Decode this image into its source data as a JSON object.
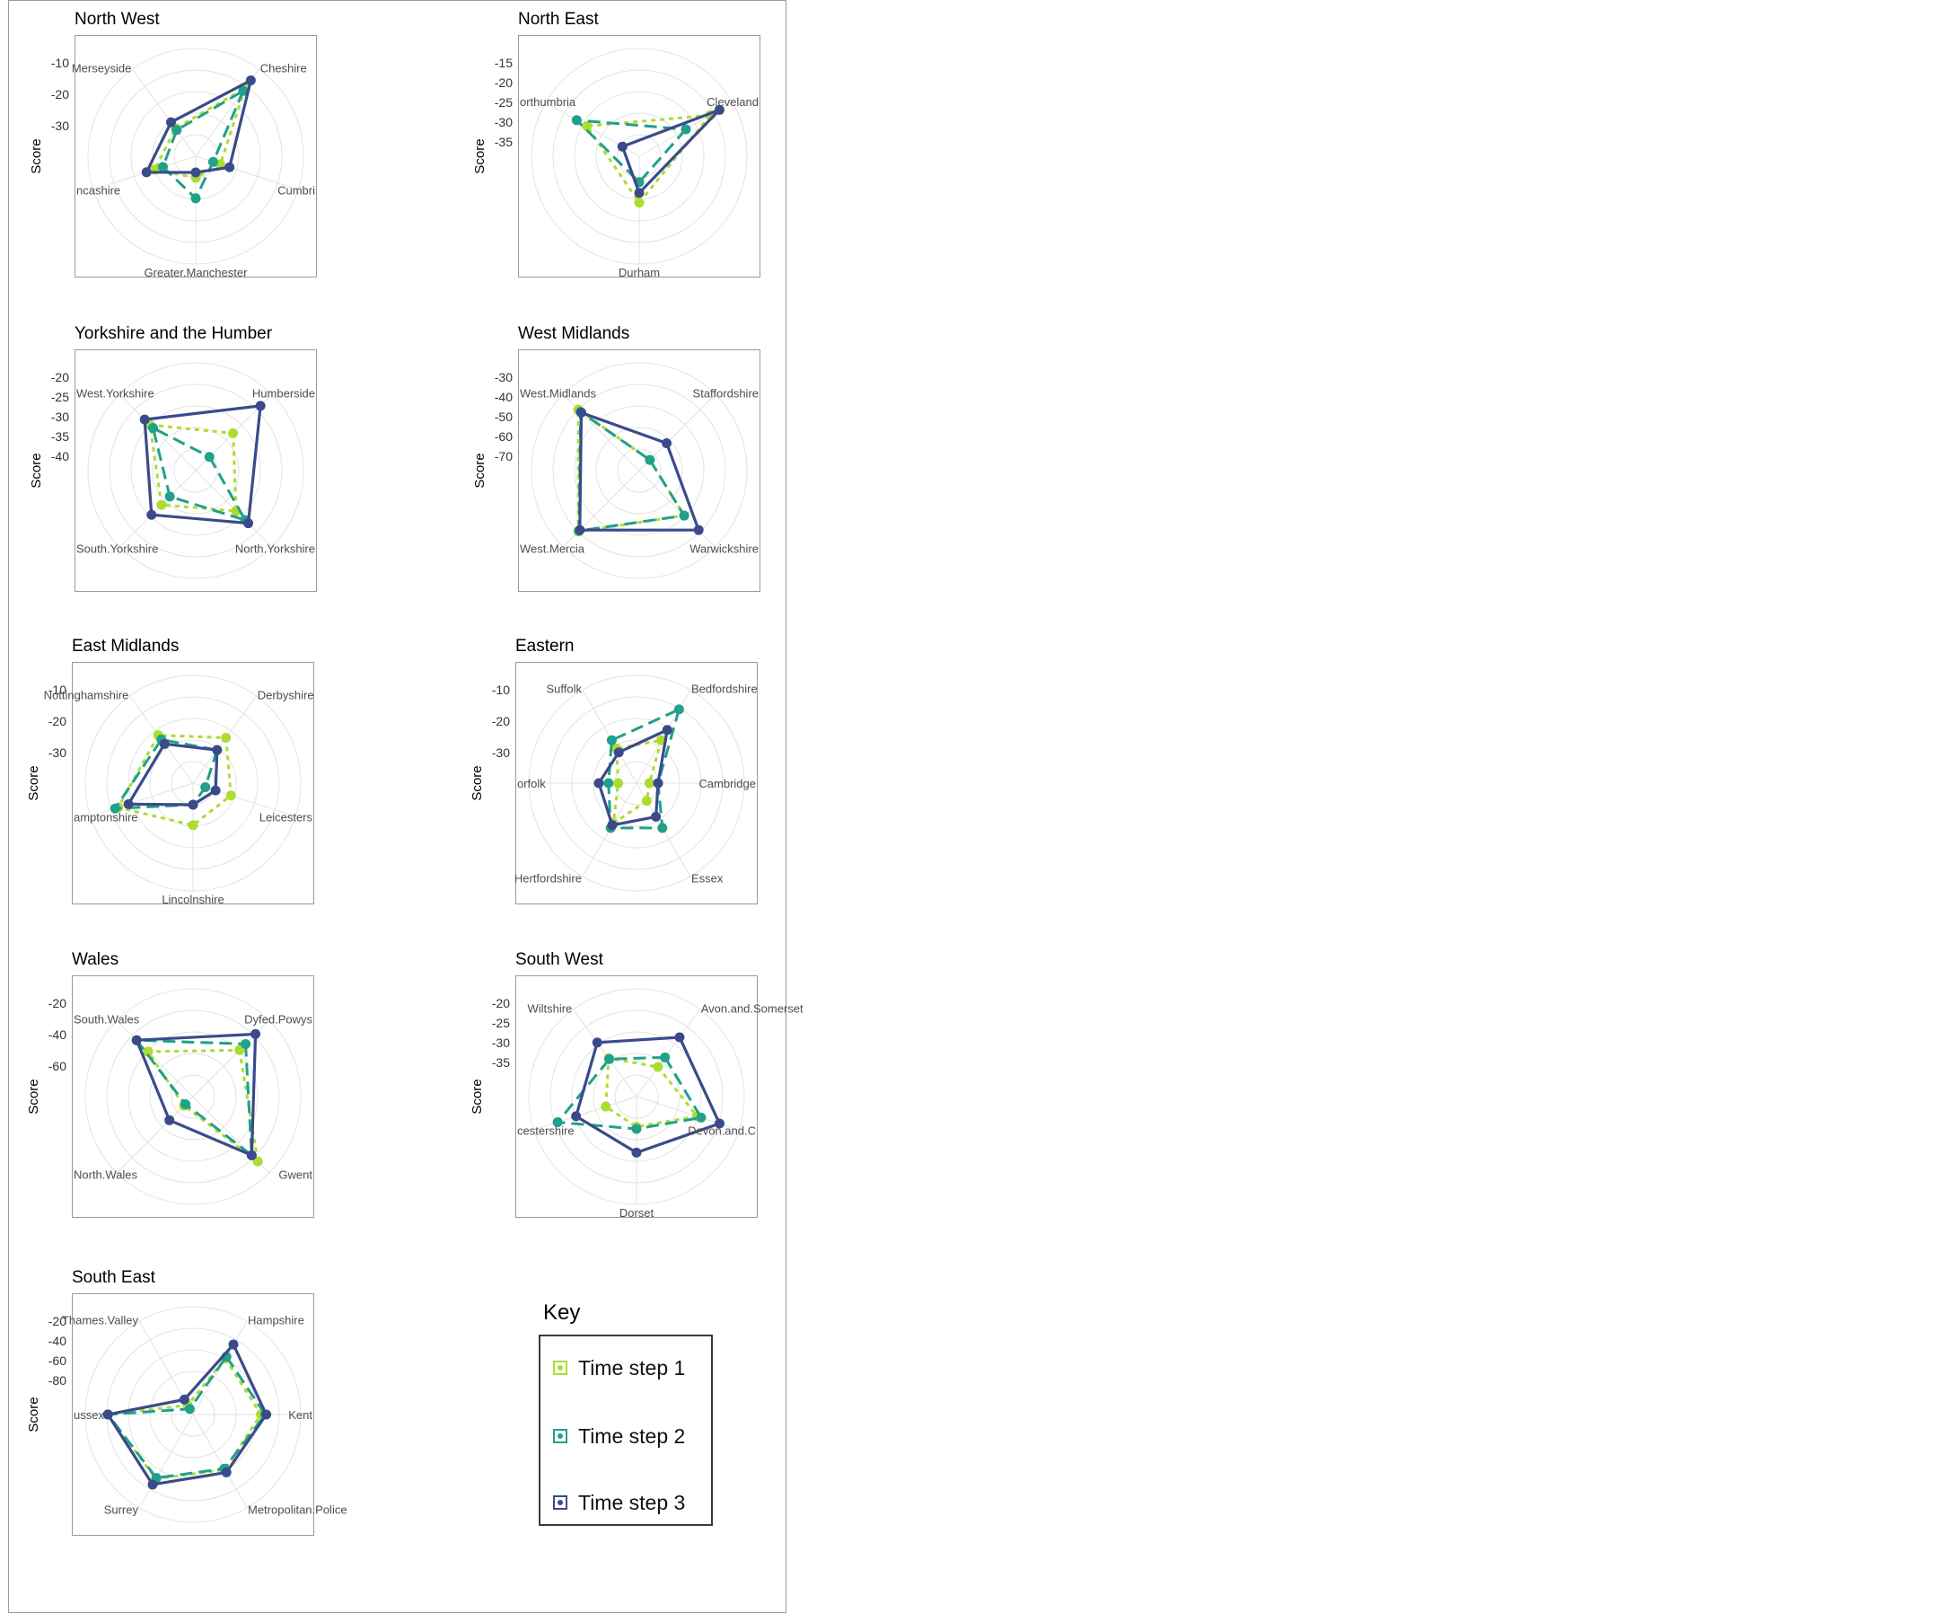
{
  "legend": {
    "title": "Key",
    "items": [
      {
        "label": "Time step 1",
        "color": "#addc30"
      },
      {
        "label": "Time step 2",
        "color": "#21a08a"
      },
      {
        "label": "Time step 3",
        "color": "#3b4a8a"
      }
    ]
  },
  "chart_data": [
    {
      "type": "radar",
      "title": "North West",
      "ylabel": "Score",
      "ticks": [
        "-10",
        "-20",
        "-30"
      ],
      "axes": [
        "Cheshire",
        "Cumbri",
        "Greater.Manchester",
        "ncashire",
        "Merseyside"
      ],
      "series": [
        {
          "values": [
            0.78,
            0.24,
            0.2,
            0.4,
            0.32
          ]
        },
        {
          "values": [
            0.75,
            0.17,
            0.39,
            0.32,
            0.3
          ]
        },
        {
          "values": [
            0.87,
            0.33,
            0.15,
            0.48,
            0.39
          ]
        }
      ]
    },
    {
      "type": "radar",
      "title": "North East",
      "ylabel": "Score",
      "ticks": [
        "-15",
        "-20",
        "-25",
        "-30",
        "-35"
      ],
      "axes": [
        "Cleveland",
        "Durham",
        "orthumbria"
      ],
      "series": [
        {
          "values": [
            0.76,
            0.43,
            0.56
          ]
        },
        {
          "values": [
            0.5,
            0.24,
            0.67
          ]
        },
        {
          "values": [
            0.86,
            0.34,
            0.18
          ]
        }
      ]
    },
    {
      "type": "radar",
      "title": "Yorkshire and the Humber",
      "ylabel": "Score",
      "ticks": [
        "-20",
        "-25",
        "-30",
        "-35",
        "-40"
      ],
      "axes": [
        "Humberside",
        "North.Yorkshire",
        "South.Yorkshire",
        "West.Yorkshire"
      ],
      "series": [
        {
          "values": [
            0.49,
            0.53,
            0.45,
            0.6
          ]
        },
        {
          "values": [
            0.18,
            0.65,
            0.34,
            0.56
          ]
        },
        {
          "values": [
            0.85,
            0.69,
            0.58,
            0.67
          ]
        }
      ]
    },
    {
      "type": "radar",
      "title": "West Midlands",
      "ylabel": "Score",
      "ticks": [
        "-30",
        "-40",
        "-50",
        "-60",
        "-70"
      ],
      "axes": [
        "Staffordshire",
        "Warwickshire",
        "West.Mercia",
        "West.Midlands"
      ],
      "series": [
        {
          "values": [
            0.14,
            0.59,
            0.8,
            0.8
          ]
        },
        {
          "values": [
            0.14,
            0.59,
            0.79,
            0.77
          ]
        },
        {
          "values": [
            0.36,
            0.78,
            0.78,
            0.76
          ]
        }
      ]
    },
    {
      "type": "radar",
      "title": "East Midlands",
      "ylabel": "Score",
      "ticks": [
        "-10",
        "-20",
        "-30"
      ],
      "axes": [
        "Derbyshire",
        "Leicesters",
        "Lincolnshire",
        "amptonshire",
        "Nottinghamshire"
      ],
      "series": [
        {
          "values": [
            0.52,
            0.37,
            0.39,
            0.73,
            0.55
          ]
        },
        {
          "values": [
            0.38,
            0.12,
            0.2,
            0.76,
            0.5
          ]
        },
        {
          "values": [
            0.38,
            0.22,
            0.2,
            0.63,
            0.45
          ]
        }
      ]
    },
    {
      "type": "radar",
      "title": "Eastern",
      "ylabel": "Score",
      "ticks": [
        "-10",
        "-20",
        "-30"
      ],
      "axes": [
        "Bedfordshire",
        "Cambridge",
        "Essex",
        "Hertfordshire",
        "orfolk",
        "Suffolk"
      ],
      "series": [
        {
          "values": [
            0.46,
            0.12,
            0.19,
            0.43,
            0.17,
            0.37
          ]
        },
        {
          "values": [
            0.79,
            0.2,
            0.48,
            0.48,
            0.26,
            0.46
          ]
        },
        {
          "values": [
            0.57,
            0.2,
            0.36,
            0.45,
            0.35,
            0.33
          ]
        }
      ]
    },
    {
      "type": "radar",
      "title": "Wales",
      "ylabel": "Score",
      "ticks": [
        "-20",
        "-40",
        "-60"
      ],
      "axes": [
        "Dyfed.Powys",
        "Gwent",
        "North.Wales",
        "South.Wales"
      ],
      "series": [
        {
          "values": [
            0.61,
            0.85,
            0.12,
            0.59
          ]
        },
        {
          "values": [
            0.69,
            0.77,
            0.1,
            0.74
          ]
        },
        {
          "values": [
            0.82,
            0.77,
            0.31,
            0.74
          ]
        }
      ]
    },
    {
      "type": "radar",
      "title": "South West",
      "ylabel": "Score",
      "ticks": [
        "-20",
        "-25",
        "-30",
        "-35"
      ],
      "axes": [
        "Avon.and.Somerset",
        "Devon.and.C",
        "Dorset",
        "cestershire",
        "Wiltshire"
      ],
      "series": [
        {
          "values": [
            0.34,
            0.59,
            0.28,
            0.3,
            0.44
          ]
        },
        {
          "values": [
            0.45,
            0.63,
            0.3,
            0.77,
            0.43
          ]
        },
        {
          "values": [
            0.68,
            0.81,
            0.52,
            0.59,
            0.62
          ]
        }
      ]
    },
    {
      "type": "radar",
      "title": "South East",
      "ylabel": "Score",
      "ticks": [
        "-20",
        "-40",
        "-60",
        "-80"
      ],
      "axes": [
        "Hampshire",
        "Kent",
        "Metropolitan.Police",
        "Surrey",
        "ussex",
        "Thames.Valley"
      ],
      "series": [
        {
          "values": [
            0.6,
            0.63,
            0.59,
            0.69,
            0.79,
            0.1
          ]
        },
        {
          "values": [
            0.62,
            0.67,
            0.58,
            0.68,
            0.79,
            0.06
          ]
        },
        {
          "values": [
            0.75,
            0.68,
            0.62,
            0.75,
            0.79,
            0.16
          ]
        }
      ]
    }
  ]
}
